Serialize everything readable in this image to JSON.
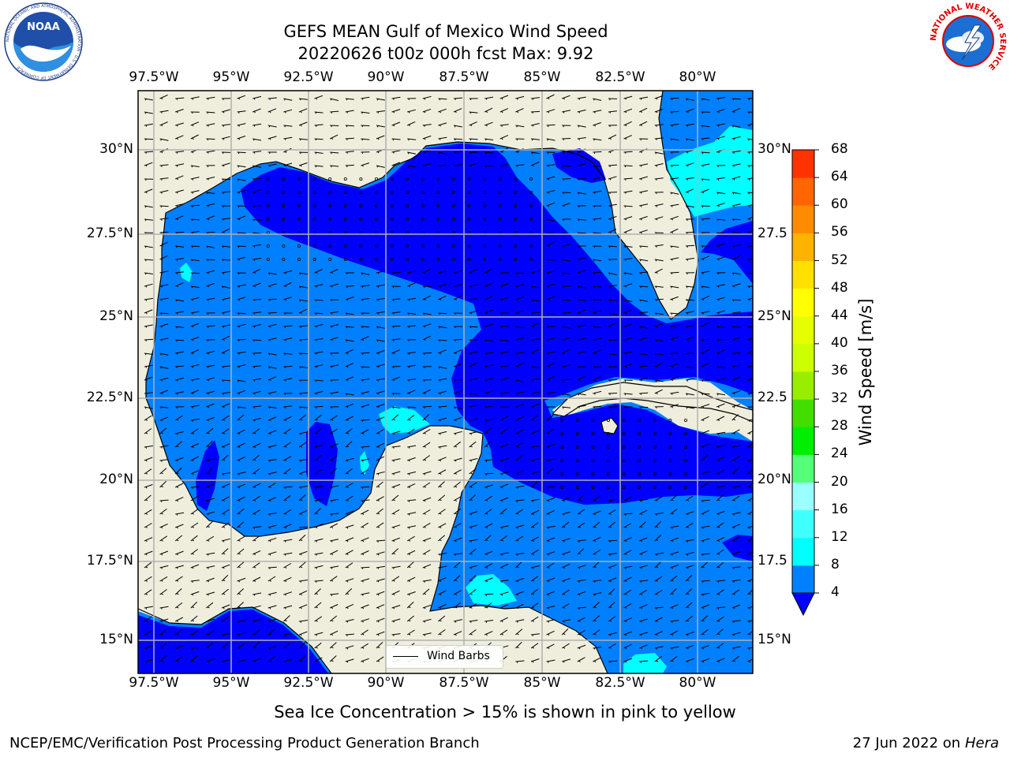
{
  "header": {
    "title_line1": "GEFS MEAN Gulf of Mexico Wind Speed",
    "title_line2": "20220626 t00z 000h fcst   Max: 9.92"
  },
  "logos": {
    "noaa_text": "NOAA",
    "noaa_ring_text": "NATIONAL OCEANIC AND ATMOSPHERIC ADMINISTRATION · U.S. DEPARTMENT OF COMMERCE",
    "nws_ring_text": "NATIONAL WEATHER SERVICE"
  },
  "map": {
    "lon_ticks": [
      "97.5°W",
      "95°W",
      "92.5°W",
      "90°W",
      "87.5°W",
      "85°W",
      "82.5°W",
      "80°W"
    ],
    "lat_ticks_left": [
      "30°N",
      "27.5°N",
      "25°N",
      "22.5°N",
      "20°N",
      "17.5°N",
      "15°N"
    ],
    "lat_ticks_right": [
      "30°N",
      "27.5",
      "25°N",
      "22.5",
      "20°N",
      "17.5",
      "15°N"
    ],
    "legend_label": "Wind Barbs",
    "colors": {
      "land": "#efeedc",
      "ocean_4_8": "#0080ff",
      "ocean_lt_4": "#0000ff",
      "ocean_8_12": "#00ffff",
      "grid": "#b0b0b0"
    }
  },
  "colorbar": {
    "title": "Wind Speed [m/s]",
    "levels": [
      "4",
      "8",
      "12",
      "16",
      "20",
      "24",
      "28",
      "32",
      "36",
      "40",
      "44",
      "48",
      "52",
      "56",
      "60",
      "64",
      "68"
    ],
    "colors": [
      "#0080ff",
      "#00ffff",
      "#40ffff",
      "#99ffff",
      "#55ff77",
      "#00ee00",
      "#44dd00",
      "#99ee00",
      "#ccff00",
      "#e5ff00",
      "#ffff00",
      "#ffe000",
      "#ffb300",
      "#ff8c00",
      "#ff6600",
      "#ff3300",
      "#ff0000"
    ],
    "under_color": "#0000ff"
  },
  "note": "Sea Ice Concentration > 15% is shown in pink to yellow",
  "footer": {
    "left": "NCEP/EMC/Verification Post Processing Product Generation Branch",
    "date": "27 Jun 2022 on",
    "machine": "Hera"
  }
}
